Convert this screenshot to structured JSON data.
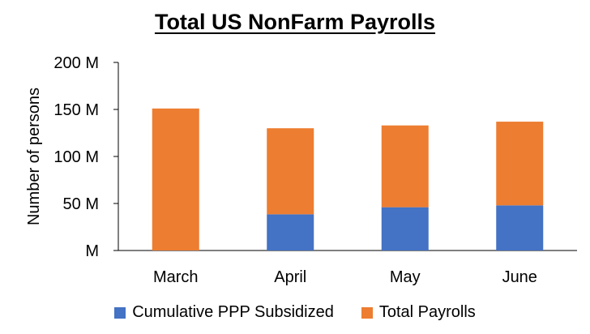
{
  "chart_data": {
    "type": "bar",
    "stacked": true,
    "title": "Total US NonFarm Payrolls",
    "xlabel": "",
    "ylabel": "Number of persons",
    "categories": [
      "March",
      "April",
      "May",
      "June"
    ],
    "ylim": [
      0,
      200
    ],
    "yticks": [
      0,
      50,
      100,
      150,
      200
    ],
    "ytick_labels": [
      "M",
      "50 M",
      "100 M",
      "150 M",
      "200 M"
    ],
    "series": [
      {
        "name": "Cumulative PPP Subsidized",
        "color": "#4472C4",
        "values": [
          0,
          38.5,
          46,
          48
        ]
      },
      {
        "name": "Total Payrolls",
        "color": "#ED7D31",
        "values": [
          151,
          91.5,
          87,
          89
        ]
      }
    ],
    "legend_position": "bottom",
    "grid": false
  }
}
